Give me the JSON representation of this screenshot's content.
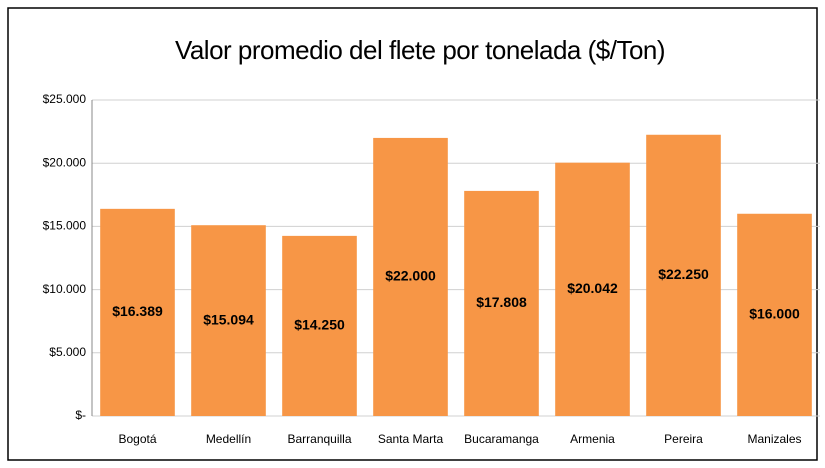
{
  "chart_data": {
    "type": "bar",
    "title": "Valor promedio del flete por tonelada ($/Ton)",
    "categories": [
      "Bogotá",
      "Medellín",
      "Barranquilla",
      "Santa Marta",
      "Bucaramanga",
      "Armenia",
      "Pereira",
      "Manizales"
    ],
    "values": [
      16389,
      15094,
      14250,
      22000,
      17808,
      20042,
      22250,
      16000
    ],
    "value_labels": [
      "$16.389",
      "$15.094",
      "$14.250",
      "$22.000",
      "$17.808",
      "$20.042",
      "$22.250",
      "$16.000"
    ],
    "color": "#f79646",
    "ylim": [
      0,
      25000
    ],
    "yticks": [
      {
        "value": 0,
        "label": "$-"
      },
      {
        "value": 5000,
        "label": "$5.000"
      },
      {
        "value": 10000,
        "label": "$10.000"
      },
      {
        "value": 15000,
        "label": "$15.000"
      },
      {
        "value": 20000,
        "label": "$20.000"
      },
      {
        "value": 25000,
        "label": "$25.000"
      }
    ],
    "grid": true
  }
}
